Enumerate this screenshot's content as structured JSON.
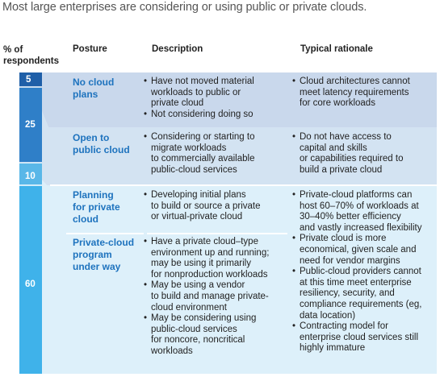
{
  "headline": "Most large enterprises are considering or using public or private clouds.",
  "headers": {
    "pct": [
      "% of",
      "respondents"
    ],
    "posture": "Posture",
    "description": "Description",
    "rationale": "Typical rationale"
  },
  "colors": {
    "bar_no_cloud": "#1f5fa8",
    "bar_open_public": "#2f7fc8",
    "bar_planning": "#59b7e8",
    "bar_private_program": "#3fb2ea",
    "band_no_cloud": "#c9d8ec",
    "band_open_public": "#d3e3f2",
    "band_private": "#ddf0fa",
    "posture_text": "#1e73be"
  },
  "chart_data": {
    "type": "table",
    "title": "Most large enterprises are considering or using public or private clouds.",
    "unit": "% of respondents",
    "rows": [
      {
        "posture": [
          "No cloud",
          "plans"
        ],
        "share": 5,
        "description": [
          "Have not moved material workloads to public or private cloud",
          "Not considering doing so"
        ],
        "rationale": [
          "Cloud architectures cannot meet latency requirements for core workloads"
        ]
      },
      {
        "posture": [
          "Open to",
          "public cloud"
        ],
        "share": 25,
        "description": [
          "Considering or starting to migrate workloads to commercially available public-cloud services"
        ],
        "rationale": [
          "Do not have access to capital and skills or capabilities required to build a private cloud"
        ]
      },
      {
        "posture": [
          "Planning",
          "for private",
          "cloud"
        ],
        "share": 10,
        "description": [
          "Developing initial plans to build or source a private or virtual-private cloud"
        ],
        "rationale": [
          "Private-cloud platforms can host 60–70% of workloads at 30–40% better efficiency and vastly increased flexibility",
          "Private cloud is more economical, given scale and need for vendor margins",
          "Public-cloud providers cannot at this time meet enterprise resiliency, security, and compliance requirements (eg, data location)",
          "Contracting model for enterprise cloud services still highly immature"
        ]
      },
      {
        "posture": [
          "Private-cloud",
          "program",
          "under way"
        ],
        "share": 60,
        "description": [
          "Have a private cloud–type environment up and running; may be using it primarily for nonproduction workloads",
          "May be using a vendor to build and manage private-cloud environment",
          "May be considering using public-cloud services for noncore, noncritical workloads"
        ],
        "rationale": []
      }
    ],
    "bar_labels": [
      "5",
      "25",
      "10",
      "60"
    ],
    "lines": {
      "no_cloud_desc": [
        "Have not moved material",
        "workloads to public or",
        "private cloud"
      ],
      "no_cloud_desc2": [
        "Not considering doing so"
      ],
      "no_cloud_rat": [
        "Cloud architectures cannot",
        "meet latency requirements",
        "for core workloads"
      ],
      "open_desc": [
        "Considering or starting to",
        "migrate workloads",
        "to commercially available",
        "public-cloud services"
      ],
      "open_rat": [
        "Do not have access to",
        "capital and skills",
        "or capabilities required to",
        "build a private cloud"
      ],
      "plan_desc": [
        "Developing initial plans",
        "to build or source a private",
        "or virtual-private cloud"
      ],
      "prog_desc1": [
        "Have a private cloud–type",
        "environment up and running;",
        "may be using it primarily",
        "for nonproduction workloads"
      ],
      "prog_desc2": [
        "May be using a vendor",
        "to build and manage private-",
        "cloud environment"
      ],
      "prog_desc3": [
        "May be considering using",
        "public-cloud services",
        "for noncore, noncritical",
        "workloads"
      ],
      "rat1": [
        "Private-cloud platforms can",
        "host 60–70% of workloads at",
        "30–40% better efficiency",
        "and vastly increased flexibility"
      ],
      "rat2": [
        "Private cloud is more",
        "economical, given scale and",
        "need for vendor margins"
      ],
      "rat3": [
        "Public-cloud providers cannot",
        "at this time meet enterprise",
        "resiliency, security, and",
        "compliance requirements (eg,",
        "data location)"
      ],
      "rat4": [
        "Contracting model for",
        "enterprise cloud services still",
        "highly immature"
      ]
    }
  }
}
